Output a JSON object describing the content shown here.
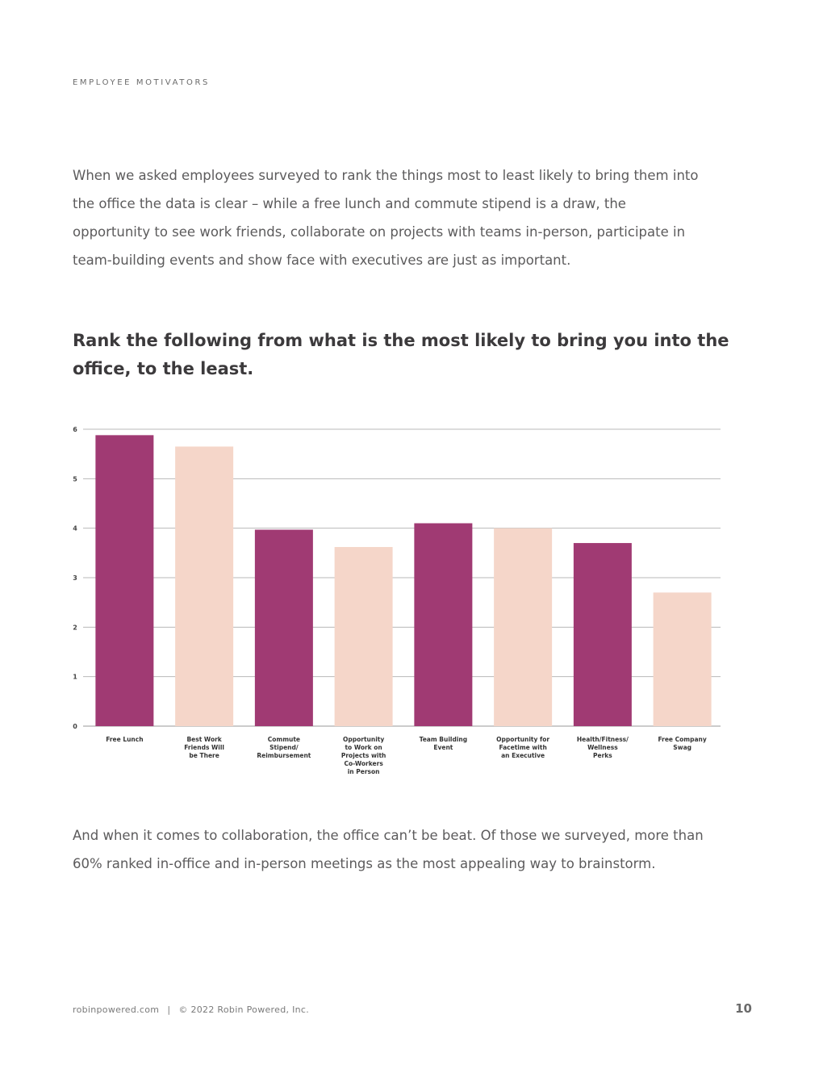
{
  "header": {
    "section_label": "EMPLOYEE MOTIVATORS"
  },
  "intro": {
    "text": "When we asked employees surveyed to rank the things most to least likely to bring them into the office the data is clear – while a free lunch and commute stipend is a draw, the opportunity to see work friends, collaborate on projects with teams in-person, participate in team-building events and show face  with executives are just as important."
  },
  "question": {
    "text": "Rank the following from what is the most likely to bring you into the office, to the least."
  },
  "chart_data": {
    "type": "bar",
    "title": "Rank the following from what is the most likely to bring you into the office, to the least.",
    "categories": [
      [
        "Free Lunch"
      ],
      [
        "Best Work",
        "Friends Will",
        "be There"
      ],
      [
        "Commute",
        "Stipend/",
        "Reimbursement"
      ],
      [
        "Opportunity",
        "to Work on",
        "Projects with",
        "Co-Workers",
        "in Person"
      ],
      [
        "Team Building",
        "Event"
      ],
      [
        "Opportunity for",
        "Facetime with",
        "an Executive"
      ],
      [
        "Health/Fitness/",
        "Wellness",
        "Perks"
      ],
      [
        "Free Company",
        "Swag"
      ]
    ],
    "values": [
      5.88,
      5.65,
      3.97,
      3.62,
      4.1,
      4.0,
      3.7,
      2.7
    ],
    "colors": [
      "#a03a73",
      "#f5d6c9",
      "#a03a73",
      "#f5d6c9",
      "#a03a73",
      "#f5d6c9",
      "#a03a73",
      "#f5d6c9"
    ],
    "ylim": [
      0,
      6
    ],
    "yticks": [
      0,
      1,
      2,
      3,
      4,
      5,
      6
    ],
    "xlabel": "",
    "ylabel": "",
    "grid": true
  },
  "outro": {
    "text": "And when it comes to collaboration, the office can’t be beat. Of those we surveyed, more than 60% ranked in-office and in-person meetings as the most appealing way to brainstorm."
  },
  "footer": {
    "website": "robinpowered.com",
    "separator": "|",
    "copyright": "© 2022 Robin Powered, Inc.",
    "page_number": "10"
  }
}
